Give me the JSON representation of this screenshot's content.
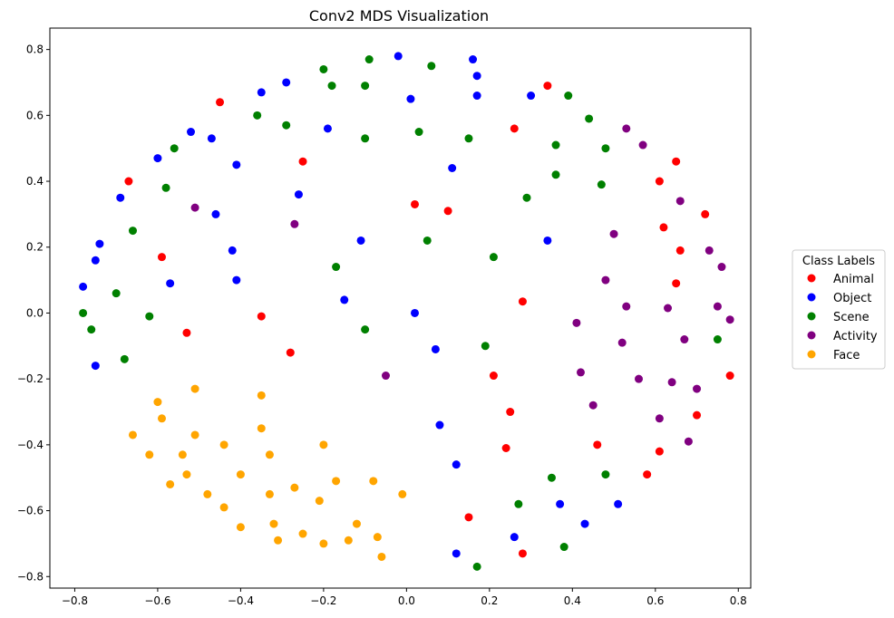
{
  "chart_data": {
    "type": "scatter",
    "title": "Conv2 MDS Visualization",
    "xlabel": "",
    "ylabel": "",
    "xlim": [
      -0.86,
      0.83
    ],
    "ylim": [
      -0.835,
      0.865
    ],
    "xticks": [
      -0.8,
      -0.6,
      -0.4,
      -0.2,
      0.0,
      0.2,
      0.4,
      0.6,
      0.8
    ],
    "yticks": [
      -0.8,
      -0.6,
      -0.4,
      -0.2,
      0.0,
      0.2,
      0.4,
      0.6,
      0.8
    ],
    "xtick_labels": [
      "−0.8",
      "−0.6",
      "−0.4",
      "−0.2",
      "0.0",
      "0.2",
      "0.4",
      "0.6",
      "0.8"
    ],
    "ytick_labels": [
      "−0.8",
      "−0.6",
      "−0.4",
      "−0.2",
      "0.0",
      "0.2",
      "0.4",
      "0.6",
      "0.8"
    ],
    "grid": false,
    "legend": {
      "title": "Class Labels",
      "placement": "outside-right"
    },
    "series": [
      {
        "name": "Animal",
        "color": "#ff0000",
        "points": [
          [
            -0.45,
            0.64
          ],
          [
            0.34,
            0.69
          ],
          [
            -0.67,
            0.4
          ],
          [
            -0.25,
            0.46
          ],
          [
            0.26,
            0.56
          ],
          [
            0.02,
            0.33
          ],
          [
            0.1,
            0.31
          ],
          [
            -0.59,
            0.17
          ],
          [
            0.65,
            0.46
          ],
          [
            0.61,
            0.4
          ],
          [
            0.72,
            0.3
          ],
          [
            0.62,
            0.26
          ],
          [
            0.66,
            0.19
          ],
          [
            0.65,
            0.09
          ],
          [
            0.28,
            0.035
          ],
          [
            -0.35,
            -0.01
          ],
          [
            -0.53,
            -0.06
          ],
          [
            -0.28,
            -0.12
          ],
          [
            0.21,
            -0.19
          ],
          [
            0.78,
            -0.19
          ],
          [
            0.25,
            -0.3
          ],
          [
            0.7,
            -0.31
          ],
          [
            0.24,
            -0.41
          ],
          [
            0.46,
            -0.4
          ],
          [
            0.61,
            -0.42
          ],
          [
            0.58,
            -0.49
          ],
          [
            0.15,
            -0.62
          ],
          [
            0.28,
            -0.73
          ]
        ]
      },
      {
        "name": "Object",
        "color": "#0000ff",
        "points": [
          [
            -0.02,
            0.78
          ],
          [
            0.16,
            0.77
          ],
          [
            0.17,
            0.72
          ],
          [
            -0.29,
            0.7
          ],
          [
            -0.35,
            0.67
          ],
          [
            0.17,
            0.66
          ],
          [
            0.3,
            0.66
          ],
          [
            0.01,
            0.65
          ],
          [
            -0.19,
            0.56
          ],
          [
            -0.52,
            0.55
          ],
          [
            -0.47,
            0.53
          ],
          [
            -0.6,
            0.47
          ],
          [
            -0.41,
            0.45
          ],
          [
            0.11,
            0.44
          ],
          [
            -0.26,
            0.36
          ],
          [
            -0.69,
            0.35
          ],
          [
            -0.46,
            0.3
          ],
          [
            -0.11,
            0.22
          ],
          [
            0.34,
            0.22
          ],
          [
            -0.74,
            0.21
          ],
          [
            -0.42,
            0.19
          ],
          [
            -0.75,
            0.16
          ],
          [
            -0.41,
            0.1
          ],
          [
            -0.57,
            0.09
          ],
          [
            -0.78,
            0.08
          ],
          [
            -0.15,
            0.04
          ],
          [
            0.02,
            0.0
          ],
          [
            0.07,
            -0.11
          ],
          [
            -0.75,
            -0.16
          ],
          [
            0.08,
            -0.34
          ],
          [
            0.12,
            -0.46
          ],
          [
            0.37,
            -0.58
          ],
          [
            0.51,
            -0.58
          ],
          [
            0.26,
            -0.68
          ],
          [
            0.43,
            -0.64
          ],
          [
            0.12,
            -0.73
          ]
        ]
      },
      {
        "name": "Scene",
        "color": "#008000",
        "points": [
          [
            -0.09,
            0.77
          ],
          [
            0.06,
            0.75
          ],
          [
            -0.2,
            0.74
          ],
          [
            -0.18,
            0.69
          ],
          [
            -0.1,
            0.69
          ],
          [
            0.39,
            0.66
          ],
          [
            -0.36,
            0.6
          ],
          [
            0.44,
            0.59
          ],
          [
            -0.29,
            0.57
          ],
          [
            0.03,
            0.55
          ],
          [
            -0.1,
            0.53
          ],
          [
            0.15,
            0.53
          ],
          [
            0.36,
            0.51
          ],
          [
            -0.56,
            0.5
          ],
          [
            0.48,
            0.5
          ],
          [
            0.36,
            0.42
          ],
          [
            0.47,
            0.39
          ],
          [
            -0.58,
            0.38
          ],
          [
            0.29,
            0.35
          ],
          [
            -0.66,
            0.25
          ],
          [
            0.05,
            0.22
          ],
          [
            0.21,
            0.17
          ],
          [
            -0.17,
            0.14
          ],
          [
            -0.7,
            0.06
          ],
          [
            -0.62,
            -0.01
          ],
          [
            -0.78,
            0.0
          ],
          [
            -0.76,
            -0.05
          ],
          [
            -0.1,
            -0.05
          ],
          [
            0.19,
            -0.1
          ],
          [
            0.75,
            -0.08
          ],
          [
            -0.68,
            -0.14
          ],
          [
            0.48,
            -0.49
          ],
          [
            0.35,
            -0.5
          ],
          [
            0.27,
            -0.58
          ],
          [
            0.38,
            -0.71
          ],
          [
            0.17,
            -0.77
          ]
        ]
      },
      {
        "name": "Activity",
        "color": "#800080",
        "points": [
          [
            0.53,
            0.56
          ],
          [
            0.57,
            0.51
          ],
          [
            0.66,
            0.34
          ],
          [
            -0.51,
            0.32
          ],
          [
            -0.27,
            0.27
          ],
          [
            0.5,
            0.24
          ],
          [
            0.73,
            0.19
          ],
          [
            0.76,
            0.14
          ],
          [
            0.48,
            0.1
          ],
          [
            0.53,
            0.02
          ],
          [
            0.63,
            0.015
          ],
          [
            0.75,
            0.02
          ],
          [
            0.78,
            -0.02
          ],
          [
            0.41,
            -0.03
          ],
          [
            0.52,
            -0.09
          ],
          [
            0.67,
            -0.08
          ],
          [
            -0.05,
            -0.19
          ],
          [
            0.42,
            -0.18
          ],
          [
            0.56,
            -0.2
          ],
          [
            0.64,
            -0.21
          ],
          [
            0.7,
            -0.23
          ],
          [
            0.45,
            -0.28
          ],
          [
            0.61,
            -0.32
          ],
          [
            0.68,
            -0.39
          ]
        ]
      },
      {
        "name": "Face",
        "color": "#ffa500",
        "points": [
          [
            -0.51,
            -0.23
          ],
          [
            -0.35,
            -0.25
          ],
          [
            -0.6,
            -0.27
          ],
          [
            -0.59,
            -0.32
          ],
          [
            -0.66,
            -0.37
          ],
          [
            -0.35,
            -0.35
          ],
          [
            -0.51,
            -0.37
          ],
          [
            -0.44,
            -0.4
          ],
          [
            -0.2,
            -0.4
          ],
          [
            -0.62,
            -0.43
          ],
          [
            -0.54,
            -0.43
          ],
          [
            -0.33,
            -0.43
          ],
          [
            -0.57,
            -0.52
          ],
          [
            -0.53,
            -0.49
          ],
          [
            -0.4,
            -0.49
          ],
          [
            -0.17,
            -0.51
          ],
          [
            -0.08,
            -0.51
          ],
          [
            -0.48,
            -0.55
          ],
          [
            -0.33,
            -0.55
          ],
          [
            -0.27,
            -0.53
          ],
          [
            -0.21,
            -0.57
          ],
          [
            -0.01,
            -0.55
          ],
          [
            -0.44,
            -0.59
          ],
          [
            -0.4,
            -0.65
          ],
          [
            -0.32,
            -0.64
          ],
          [
            -0.25,
            -0.67
          ],
          [
            -0.12,
            -0.64
          ],
          [
            -0.07,
            -0.68
          ],
          [
            -0.31,
            -0.69
          ],
          [
            -0.2,
            -0.7
          ],
          [
            -0.14,
            -0.69
          ],
          [
            -0.06,
            -0.74
          ]
        ]
      }
    ]
  }
}
